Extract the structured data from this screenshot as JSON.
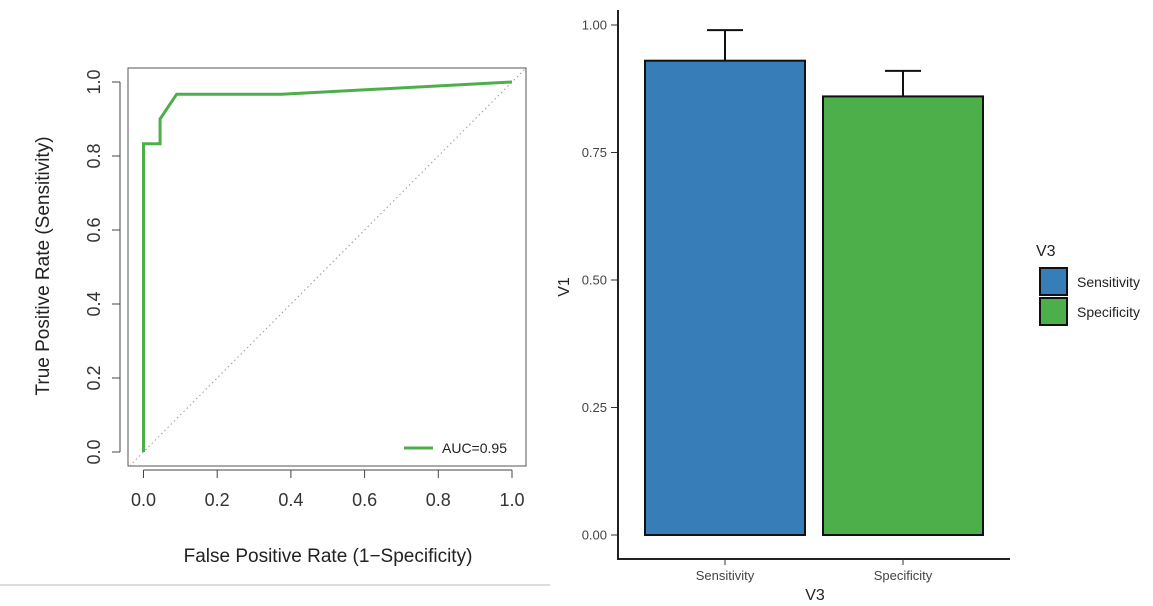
{
  "chart_data": [
    {
      "type": "line",
      "xlabel": "False Positive Rate (1−Specificity)",
      "ylabel": "True Positive Rate (Sensitivity)",
      "xlim": [
        0,
        1
      ],
      "ylim": [
        0,
        1
      ],
      "x_ticks": [
        "0.0",
        "0.2",
        "0.4",
        "0.6",
        "0.8",
        "1.0"
      ],
      "y_ticks": [
        "0.0",
        "0.2",
        "0.4",
        "0.6",
        "0.8",
        "1.0"
      ],
      "grid": false,
      "reference_line": "diagonal dotted",
      "series": [
        {
          "name": "AUC=0.95",
          "color": "#4daf4a",
          "x": [
            0.0,
            0.0,
            0.0,
            0.045,
            0.045,
            0.09,
            0.09,
            0.375,
            1.0
          ],
          "y": [
            0.0,
            0.833,
            0.833,
            0.833,
            0.9,
            0.967,
            0.967,
            0.967,
            1.0
          ]
        }
      ],
      "legend": {
        "position": "bottom-right",
        "entries": [
          "AUC=0.95"
        ]
      }
    },
    {
      "type": "bar",
      "categories": [
        "Sensitivity",
        "Specificity"
      ],
      "values": [
        0.93,
        0.86
      ],
      "error_upper": [
        0.99,
        0.91
      ],
      "colors": [
        "#377eb8",
        "#4daf4a"
      ],
      "xlabel": "V3",
      "ylabel": "V1",
      "ylim": [
        0,
        1
      ],
      "y_ticks": [
        "0.00",
        "0.25",
        "0.50",
        "0.75",
        "1.00"
      ],
      "grid": false,
      "legend": {
        "title": "V3",
        "position": "right",
        "entries": [
          "Sensitivity",
          "Specificity"
        ]
      }
    }
  ]
}
